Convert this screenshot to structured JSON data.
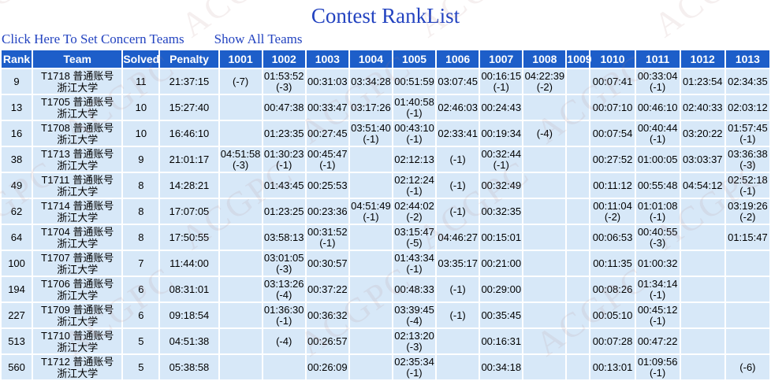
{
  "page": {
    "title": "Contest RankList",
    "watermark_text": "ACGPC",
    "links": {
      "set_concern": "Click Here To Set Concern Teams",
      "show_all": "Show All Teams"
    }
  },
  "colors": {
    "header_bg": "#1d5ec9",
    "row_bg": "#d7e8f8",
    "accepted_bg": "#008000",
    "failed_bg": "#fe0000",
    "solved_text": "#3366cc",
    "penalty_text": "#993399",
    "link_text": "#2343c0"
  },
  "table": {
    "headers": [
      "Rank",
      "Team",
      "Solved",
      "Penalty",
      "1001",
      "1002",
      "1003",
      "1004",
      "1005",
      "1006",
      "1007",
      "1008",
      "1009",
      "1010",
      "1011",
      "1012",
      "1013"
    ],
    "rows": [
      {
        "rank": "9",
        "team_line1": "T1718 普通账号",
        "team_line2": "浙江大学",
        "solved": "11",
        "penalty": "21:37:15",
        "problems": [
          {
            "status": "failed",
            "tries": "(-7)"
          },
          {
            "status": "accepted",
            "time": "01:53:52",
            "tries": "(-3)"
          },
          {
            "status": "accepted",
            "time": "00:31:03"
          },
          {
            "status": "accepted",
            "time": "03:34:28"
          },
          {
            "status": "accepted",
            "time": "00:51:59"
          },
          {
            "status": "accepted",
            "time": "03:07:45"
          },
          {
            "status": "accepted",
            "time": "00:16:15",
            "tries": "(-1)"
          },
          {
            "status": "accepted",
            "time": "04:22:39",
            "tries": "(-2)"
          },
          {
            "status": "empty"
          },
          {
            "status": "accepted",
            "time": "00:07:41"
          },
          {
            "status": "accepted",
            "time": "00:33:04",
            "tries": "(-1)"
          },
          {
            "status": "accepted",
            "time": "01:23:54"
          },
          {
            "status": "accepted",
            "time": "02:34:35"
          }
        ]
      },
      {
        "rank": "13",
        "team_line1": "T1705 普通账号",
        "team_line2": "浙江大学",
        "solved": "10",
        "penalty": "15:27:40",
        "problems": [
          {
            "status": "empty"
          },
          {
            "status": "accepted",
            "time": "00:47:38"
          },
          {
            "status": "accepted",
            "time": "00:33:47"
          },
          {
            "status": "accepted",
            "time": "03:17:26"
          },
          {
            "status": "accepted",
            "time": "01:40:58",
            "tries": "(-1)"
          },
          {
            "status": "accepted",
            "time": "02:46:03"
          },
          {
            "status": "accepted",
            "time": "00:24:43"
          },
          {
            "status": "empty"
          },
          {
            "status": "empty"
          },
          {
            "status": "accepted",
            "time": "00:07:10"
          },
          {
            "status": "accepted",
            "time": "00:46:10"
          },
          {
            "status": "accepted",
            "time": "02:40:33"
          },
          {
            "status": "accepted",
            "time": "02:03:12"
          }
        ]
      },
      {
        "rank": "16",
        "team_line1": "T1708 普通账号",
        "team_line2": "浙江大学",
        "solved": "10",
        "penalty": "16:46:10",
        "problems": [
          {
            "status": "empty"
          },
          {
            "status": "accepted",
            "time": "01:23:35"
          },
          {
            "status": "accepted",
            "time": "00:27:45"
          },
          {
            "status": "accepted",
            "time": "03:51:40",
            "tries": "(-1)"
          },
          {
            "status": "accepted",
            "time": "00:43:10",
            "tries": "(-1)"
          },
          {
            "status": "accepted",
            "time": "02:33:41"
          },
          {
            "status": "accepted",
            "time": "00:19:34"
          },
          {
            "status": "failed",
            "tries": "(-4)"
          },
          {
            "status": "empty"
          },
          {
            "status": "accepted",
            "time": "00:07:54"
          },
          {
            "status": "accepted",
            "time": "00:40:44",
            "tries": "(-1)"
          },
          {
            "status": "accepted",
            "time": "03:20:22"
          },
          {
            "status": "accepted",
            "time": "01:57:45",
            "tries": "(-1)"
          }
        ]
      },
      {
        "rank": "38",
        "team_line1": "T1713 普通账号",
        "team_line2": "浙江大学",
        "solved": "9",
        "penalty": "21:01:17",
        "problems": [
          {
            "status": "accepted",
            "time": "04:51:58",
            "tries": "(-3)"
          },
          {
            "status": "accepted",
            "time": "01:30:23",
            "tries": "(-1)"
          },
          {
            "status": "accepted",
            "time": "00:45:47",
            "tries": "(-1)"
          },
          {
            "status": "empty"
          },
          {
            "status": "accepted",
            "time": "02:12:13"
          },
          {
            "status": "failed",
            "tries": "(-1)"
          },
          {
            "status": "accepted",
            "time": "00:32:44",
            "tries": "(-1)"
          },
          {
            "status": "empty"
          },
          {
            "status": "empty"
          },
          {
            "status": "accepted",
            "time": "00:27:52"
          },
          {
            "status": "accepted",
            "time": "01:00:05"
          },
          {
            "status": "accepted",
            "time": "03:03:37"
          },
          {
            "status": "accepted",
            "time": "03:36:38",
            "tries": "(-3)"
          }
        ]
      },
      {
        "rank": "49",
        "team_line1": "T1711 普通账号",
        "team_line2": "浙江大学",
        "solved": "8",
        "penalty": "14:28:21",
        "problems": [
          {
            "status": "empty"
          },
          {
            "status": "accepted",
            "time": "01:43:45"
          },
          {
            "status": "accepted",
            "time": "00:25:53"
          },
          {
            "status": "empty"
          },
          {
            "status": "accepted",
            "time": "02:12:24",
            "tries": "(-1)"
          },
          {
            "status": "failed",
            "tries": "(-1)"
          },
          {
            "status": "accepted",
            "time": "00:32:49"
          },
          {
            "status": "empty"
          },
          {
            "status": "empty"
          },
          {
            "status": "accepted",
            "time": "00:11:12"
          },
          {
            "status": "accepted",
            "time": "00:55:48"
          },
          {
            "status": "accepted",
            "time": "04:54:12"
          },
          {
            "status": "accepted",
            "time": "02:52:18",
            "tries": "(-1)"
          }
        ]
      },
      {
        "rank": "62",
        "team_line1": "T1714 普通账号",
        "team_line2": "浙江大学",
        "solved": "8",
        "penalty": "17:07:05",
        "problems": [
          {
            "status": "empty"
          },
          {
            "status": "accepted",
            "time": "01:23:25"
          },
          {
            "status": "accepted",
            "time": "00:23:36"
          },
          {
            "status": "accepted",
            "time": "04:51:49",
            "tries": "(-1)"
          },
          {
            "status": "accepted",
            "time": "02:44:02",
            "tries": "(-2)"
          },
          {
            "status": "failed",
            "tries": "(-1)"
          },
          {
            "status": "accepted",
            "time": "00:32:35"
          },
          {
            "status": "empty"
          },
          {
            "status": "empty"
          },
          {
            "status": "accepted",
            "time": "00:11:04",
            "tries": "(-2)"
          },
          {
            "status": "accepted",
            "time": "01:01:08",
            "tries": "(-1)"
          },
          {
            "status": "empty"
          },
          {
            "status": "accepted",
            "time": "03:19:26",
            "tries": "(-2)"
          }
        ]
      },
      {
        "rank": "64",
        "team_line1": "T1704 普通账号",
        "team_line2": "浙江大学",
        "solved": "8",
        "penalty": "17:50:55",
        "problems": [
          {
            "status": "empty"
          },
          {
            "status": "accepted",
            "time": "03:58:13"
          },
          {
            "status": "accepted",
            "time": "00:31:52",
            "tries": "(-1)"
          },
          {
            "status": "empty"
          },
          {
            "status": "accepted",
            "time": "03:15:47",
            "tries": "(-5)"
          },
          {
            "status": "accepted",
            "time": "04:46:27"
          },
          {
            "status": "accepted",
            "time": "00:15:01"
          },
          {
            "status": "empty"
          },
          {
            "status": "empty"
          },
          {
            "status": "accepted",
            "time": "00:06:53"
          },
          {
            "status": "accepted",
            "time": "00:40:55",
            "tries": "(-3)"
          },
          {
            "status": "empty"
          },
          {
            "status": "accepted",
            "time": "01:15:47"
          }
        ]
      },
      {
        "rank": "100",
        "team_line1": "T1707 普通账号",
        "team_line2": "浙江大学",
        "solved": "7",
        "penalty": "11:44:00",
        "problems": [
          {
            "status": "empty"
          },
          {
            "status": "accepted",
            "time": "03:01:05",
            "tries": "(-3)"
          },
          {
            "status": "accepted",
            "time": "00:30:57"
          },
          {
            "status": "empty"
          },
          {
            "status": "accepted",
            "time": "01:43:34",
            "tries": "(-1)"
          },
          {
            "status": "accepted",
            "time": "03:35:17"
          },
          {
            "status": "accepted",
            "time": "00:21:00"
          },
          {
            "status": "empty"
          },
          {
            "status": "empty"
          },
          {
            "status": "accepted",
            "time": "00:11:35"
          },
          {
            "status": "accepted",
            "time": "01:00:32"
          },
          {
            "status": "empty"
          },
          {
            "status": "empty"
          }
        ]
      },
      {
        "rank": "194",
        "team_line1": "T1706 普通账号",
        "team_line2": "浙江大学",
        "solved": "6",
        "penalty": "08:31:01",
        "problems": [
          {
            "status": "empty"
          },
          {
            "status": "accepted",
            "time": "03:13:26",
            "tries": "(-4)"
          },
          {
            "status": "accepted",
            "time": "00:37:22"
          },
          {
            "status": "empty"
          },
          {
            "status": "accepted",
            "time": "00:48:33"
          },
          {
            "status": "failed",
            "tries": "(-1)"
          },
          {
            "status": "accepted",
            "time": "00:29:00"
          },
          {
            "status": "empty"
          },
          {
            "status": "empty"
          },
          {
            "status": "accepted",
            "time": "00:08:26"
          },
          {
            "status": "accepted",
            "time": "01:34:14",
            "tries": "(-1)"
          },
          {
            "status": "empty"
          },
          {
            "status": "empty"
          }
        ]
      },
      {
        "rank": "227",
        "team_line1": "T1709 普通账号",
        "team_line2": "浙江大学",
        "solved": "6",
        "penalty": "09:18:54",
        "problems": [
          {
            "status": "empty"
          },
          {
            "status": "accepted",
            "time": "01:36:30",
            "tries": "(-1)"
          },
          {
            "status": "accepted",
            "time": "00:36:32"
          },
          {
            "status": "empty"
          },
          {
            "status": "accepted",
            "time": "03:39:45",
            "tries": "(-4)"
          },
          {
            "status": "failed",
            "tries": "(-1)"
          },
          {
            "status": "accepted",
            "time": "00:35:45"
          },
          {
            "status": "empty"
          },
          {
            "status": "empty"
          },
          {
            "status": "accepted",
            "time": "00:05:10"
          },
          {
            "status": "accepted",
            "time": "00:45:12",
            "tries": "(-1)"
          },
          {
            "status": "empty"
          },
          {
            "status": "empty"
          }
        ]
      },
      {
        "rank": "513",
        "team_line1": "T1710 普通账号",
        "team_line2": "浙江大学",
        "solved": "5",
        "penalty": "04:51:38",
        "problems": [
          {
            "status": "empty"
          },
          {
            "status": "failed",
            "tries": "(-4)"
          },
          {
            "status": "accepted",
            "time": "00:26:57"
          },
          {
            "status": "empty"
          },
          {
            "status": "accepted",
            "time": "02:13:20",
            "tries": "(-3)"
          },
          {
            "status": "empty"
          },
          {
            "status": "accepted",
            "time": "00:16:31"
          },
          {
            "status": "empty"
          },
          {
            "status": "empty"
          },
          {
            "status": "accepted",
            "time": "00:07:28"
          },
          {
            "status": "accepted",
            "time": "00:47:22"
          },
          {
            "status": "empty"
          },
          {
            "status": "empty"
          }
        ]
      },
      {
        "rank": "560",
        "team_line1": "T1712 普通账号",
        "team_line2": "浙江大学",
        "solved": "5",
        "penalty": "05:38:58",
        "problems": [
          {
            "status": "empty"
          },
          {
            "status": "empty"
          },
          {
            "status": "accepted",
            "time": "00:26:09"
          },
          {
            "status": "empty"
          },
          {
            "status": "accepted",
            "time": "02:35:34",
            "tries": "(-1)"
          },
          {
            "status": "empty"
          },
          {
            "status": "accepted",
            "time": "00:34:18"
          },
          {
            "status": "empty"
          },
          {
            "status": "empty"
          },
          {
            "status": "accepted",
            "time": "00:13:01"
          },
          {
            "status": "accepted",
            "time": "01:09:56",
            "tries": "(-1)"
          },
          {
            "status": "empty"
          },
          {
            "status": "failed",
            "tries": "(-6)"
          }
        ]
      }
    ]
  }
}
